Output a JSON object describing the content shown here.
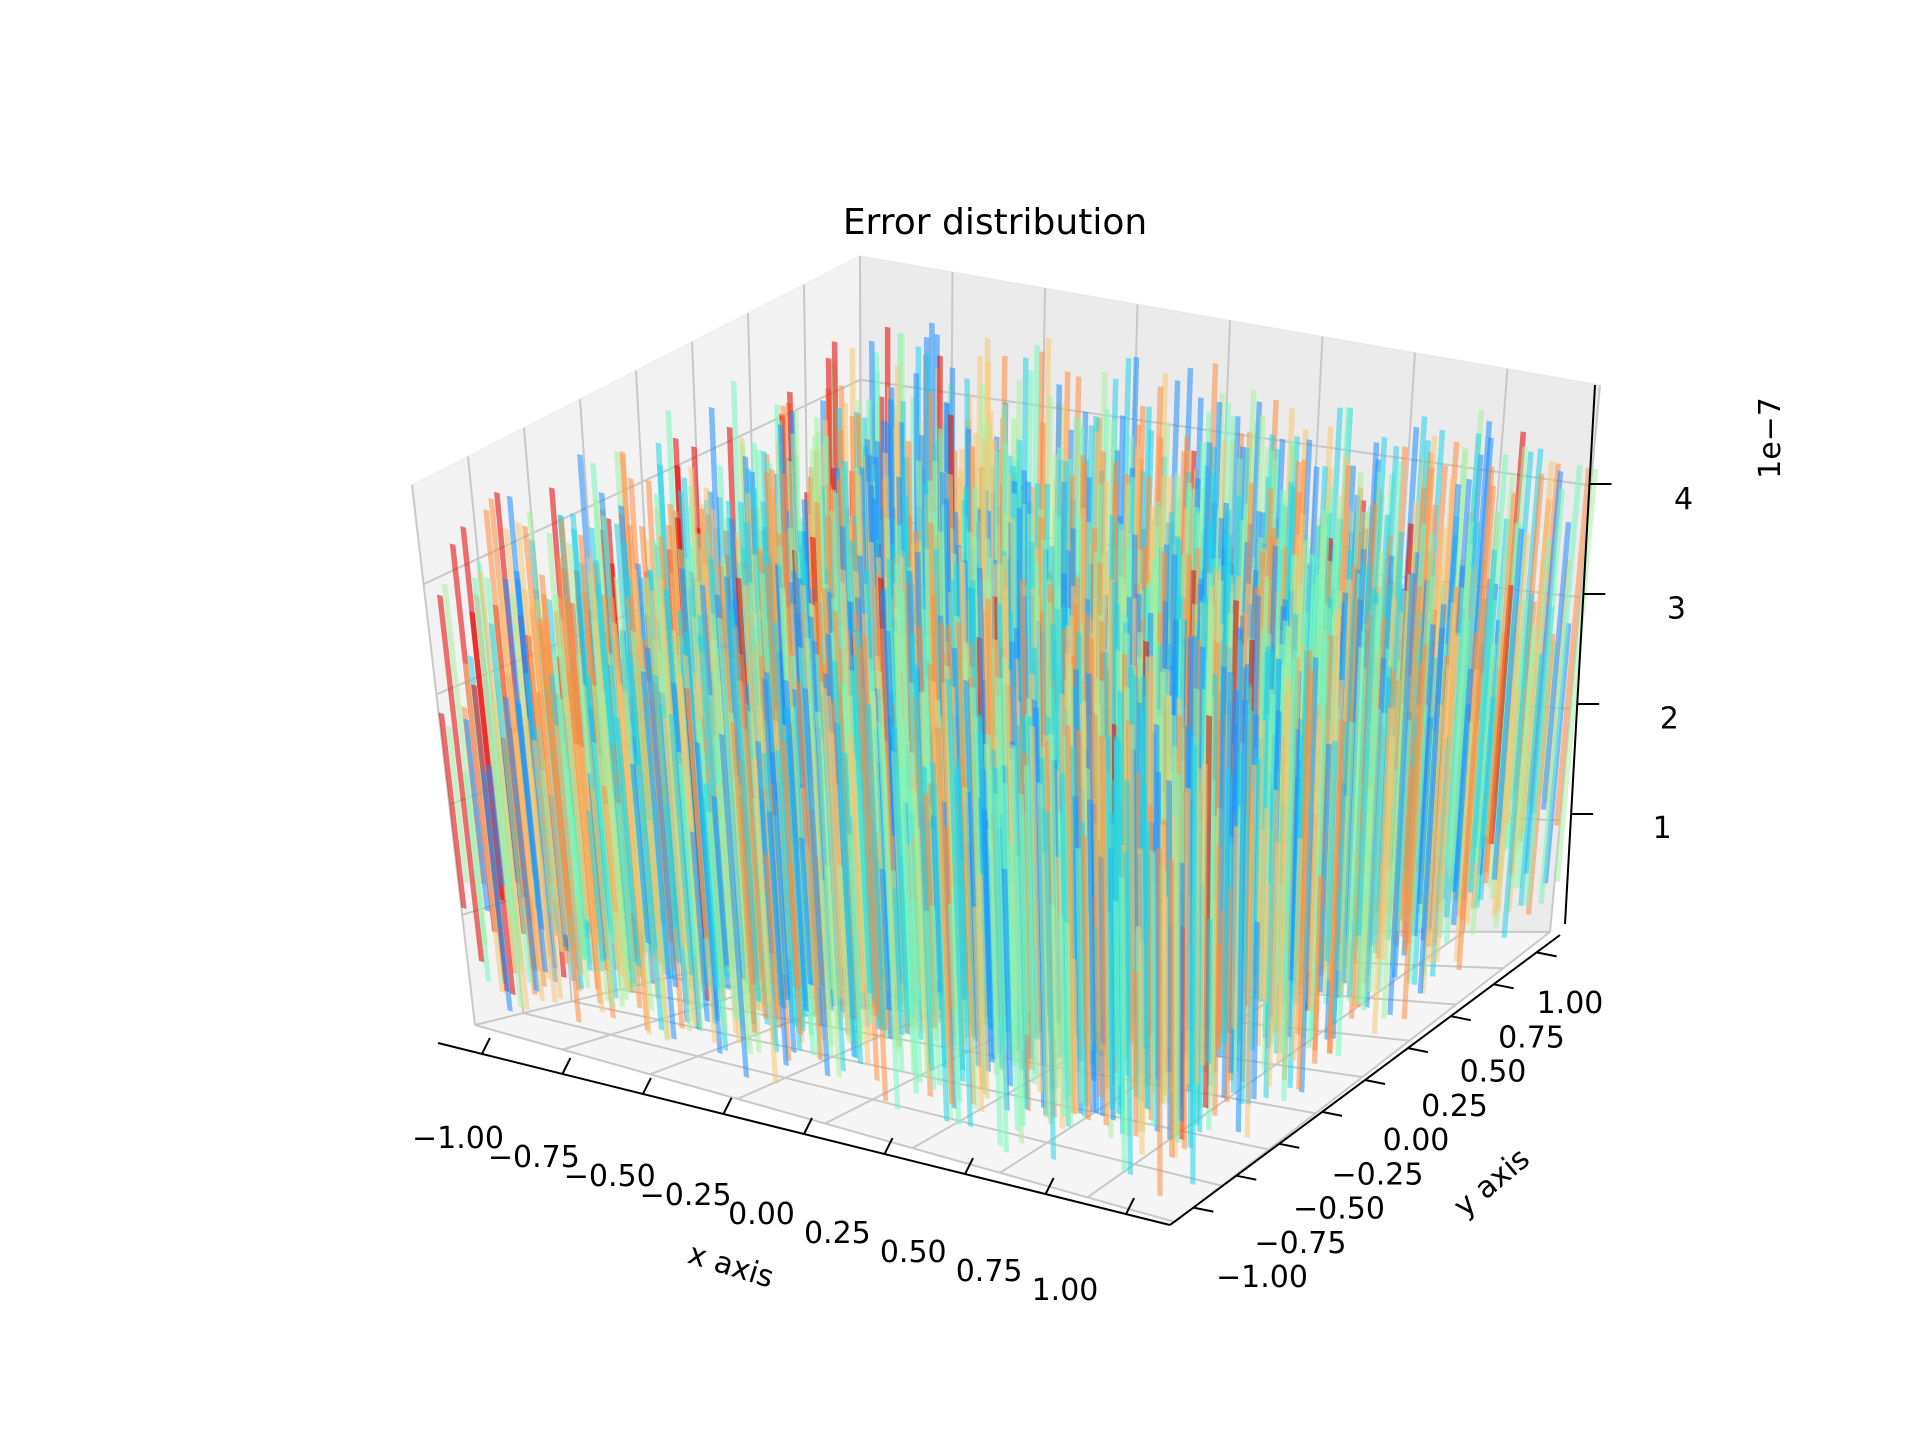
{
  "chart_data": {
    "type": "surface3d",
    "title": "Error distribution",
    "xlabel": "x axis",
    "ylabel": "y axis",
    "zlabel": "",
    "z_offset_label": "1e−7",
    "xlim": [
      -1.0,
      1.0
    ],
    "ylim": [
      -1.0,
      1.0
    ],
    "zlim": [
      0.0,
      4.9
    ],
    "z_scale": 1e-07,
    "x_ticks": [
      "−1.00",
      "−0.75",
      "−0.50",
      "−0.25",
      "0.00",
      "0.25",
      "0.50",
      "0.75",
      "1.00"
    ],
    "y_ticks": [
      "−1.00",
      "−0.75",
      "−0.50",
      "−0.25",
      "0.00",
      "0.25",
      "0.50",
      "0.75",
      "1.00"
    ],
    "z_ticks": [
      "1",
      "2",
      "3",
      "4"
    ],
    "colormap": [
      "#1e90ff",
      "#22d3e8",
      "#77f7c0",
      "#a8f0a0",
      "#f5c775",
      "#ff8c42",
      "#e60000"
    ],
    "grid": true,
    "pane_color": "#f2f2f2"
  }
}
